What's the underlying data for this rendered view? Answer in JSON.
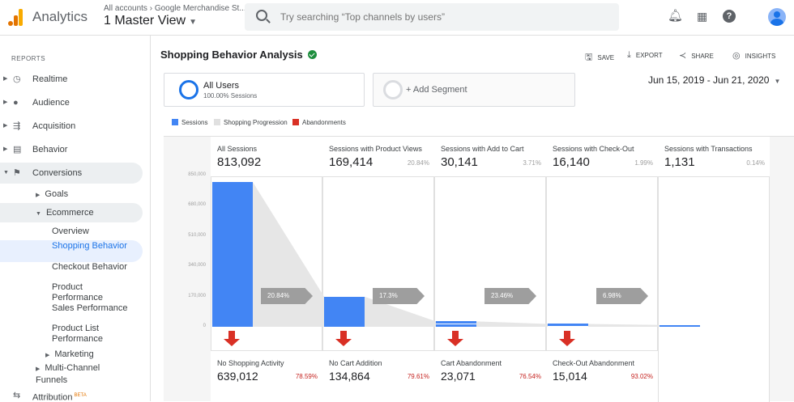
{
  "topbar": {
    "app_title": "Analytics",
    "account_crumb": "All accounts",
    "property_crumb": "Google Merchandise St...",
    "view_name": "1 Master View",
    "search_placeholder": "Try searching “Top channels by users”",
    "icons": [
      "bell-icon",
      "apps-grid-icon",
      "help-icon",
      "account-avatar"
    ]
  },
  "sidebar": {
    "section_label": "REPORTS",
    "items": [
      {
        "label": "Realtime",
        "icon": "clock-icon"
      },
      {
        "label": "Audience",
        "icon": "person-icon"
      },
      {
        "label": "Acquisition",
        "icon": "acquisition-icon"
      },
      {
        "label": "Behavior",
        "icon": "behavior-icon"
      },
      {
        "label": "Conversions",
        "icon": "flag-icon"
      }
    ],
    "conversions_children": {
      "goals": "Goals",
      "ecommerce": "Ecommerce",
      "ecommerce_children": [
        "Overview",
        "Shopping Behavior",
        "Checkout Behavior",
        "Product Performance",
        "Sales Performance",
        "Product List Performance"
      ],
      "marketing": "Marketing",
      "multi_channel": "Multi-Channel Funnels"
    },
    "attribution": "Attribution",
    "attribution_badge": "BETA"
  },
  "page": {
    "title": "Shopping Behavior Analysis",
    "actions": [
      "SAVE",
      "EXPORT",
      "SHARE",
      "INSIGHTS"
    ],
    "segment": {
      "name": "All Users",
      "sub": "100.00% Sessions"
    },
    "add_segment": "+ Add Segment",
    "date_range": "Jun 15, 2019 - Jun 21, 2020",
    "legend": [
      {
        "label": "Sessions",
        "color": "#4285f4"
      },
      {
        "label": "Shopping Progression",
        "color": "#e0e0e0"
      },
      {
        "label": "Abandonments",
        "color": "#d93025"
      }
    ]
  },
  "chart_data": {
    "type": "bar",
    "y_ticks": [
      "850,000",
      "680,000",
      "510,000",
      "340,000",
      "170,000",
      "0"
    ],
    "ylim": [
      0,
      850000
    ],
    "stages": [
      {
        "name": "All Sessions",
        "value": "813,092",
        "pct": "",
        "raw": 813092
      },
      {
        "name": "Sessions with Product Views",
        "value": "169,414",
        "pct": "20.84%",
        "raw": 169414
      },
      {
        "name": "Sessions with Add to Cart",
        "value": "30,141",
        "pct": "3.71%",
        "raw": 30141
      },
      {
        "name": "Sessions with Check-Out",
        "value": "16,140",
        "pct": "1.99%",
        "raw": 16140
      },
      {
        "name": "Sessions with Transactions",
        "value": "1,131",
        "pct": "0.14%",
        "raw": 1131
      }
    ],
    "progression": [
      "20.84%",
      "17.3%",
      "23.46%",
      "6.98%"
    ],
    "abandonments": [
      {
        "name": "No Shopping Activity",
        "value": "639,012",
        "pct": "78.59%"
      },
      {
        "name": "No Cart Addition",
        "value": "134,864",
        "pct": "79.61%"
      },
      {
        "name": "Cart Abandonment",
        "value": "23,071",
        "pct": "76.54%"
      },
      {
        "name": "Check-Out Abandonment",
        "value": "15,014",
        "pct": "93.02%"
      }
    ]
  }
}
